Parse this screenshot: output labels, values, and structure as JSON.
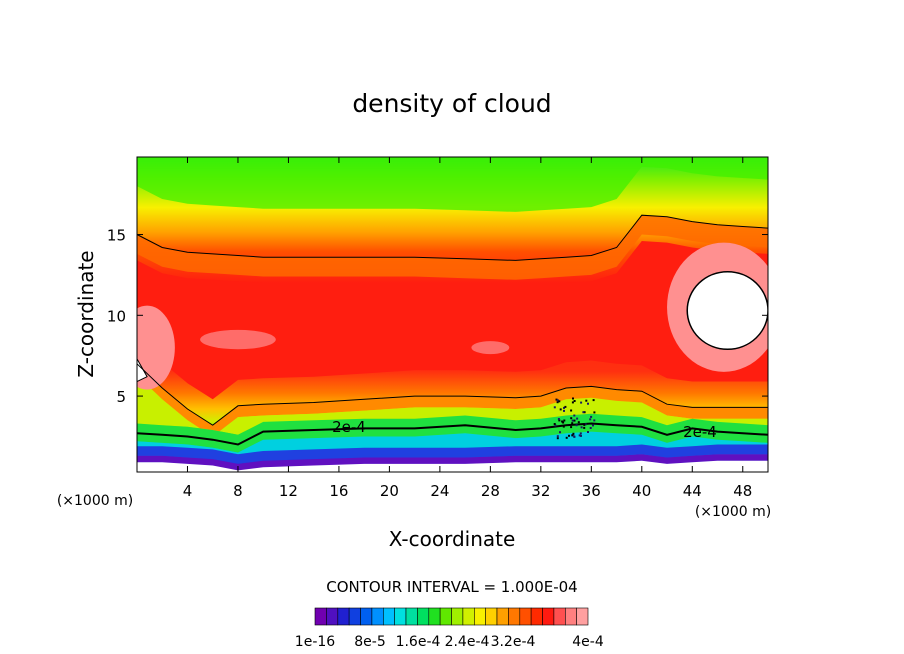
{
  "chart_data": {
    "type": "heatmap",
    "title": "density of cloud",
    "xlabel": "X-coordinate",
    "ylabel": "Z-coordinate",
    "x_unit": "(×1000 m)",
    "xlim": [
      0,
      50
    ],
    "ylim": [
      0.3,
      19.8
    ],
    "x_ticks": [
      4,
      8,
      12,
      16,
      20,
      24,
      28,
      32,
      36,
      40,
      44,
      48
    ],
    "y_ticks": [
      5,
      10,
      15
    ],
    "contour_interval_text": "CONTOUR INTERVAL = 1.000E-04",
    "contour_label": "2e-4",
    "colorbar_labels": [
      "1e-16",
      "8e-5",
      "1.6e-4",
      "2.4e-4",
      "3.2e-4",
      "4e-4"
    ],
    "colorbar_colors": [
      "#7000b0",
      "#5010c0",
      "#2020d0",
      "#1040e0",
      "#0060f0",
      "#0090ff",
      "#00c0ff",
      "#00e0e0",
      "#00e0a0",
      "#00e060",
      "#20e020",
      "#60e800",
      "#a0f000",
      "#d0f000",
      "#f8f000",
      "#ffd000",
      "#ffa000",
      "#ff7800",
      "#ff5000",
      "#ff2a00",
      "#ff1a10",
      "#ff5050",
      "#ff8080",
      "#ffa0a0"
    ],
    "levels_x": [
      0,
      2,
      4,
      6,
      8,
      10,
      14,
      18,
      22,
      26,
      30,
      32,
      34,
      36,
      38,
      40,
      42,
      44,
      46,
      48,
      50
    ],
    "contour_high_z": [
      15.0,
      14.2,
      13.9,
      13.8,
      13.7,
      13.6,
      13.6,
      13.6,
      13.6,
      13.5,
      13.4,
      13.5,
      13.6,
      13.7,
      14.2,
      16.2,
      16.1,
      15.8,
      15.6,
      15.5,
      15.4
    ],
    "contour_mid_z": [
      7.0,
      5.5,
      4.2,
      3.2,
      4.4,
      4.5,
      4.6,
      4.8,
      5.0,
      5.0,
      4.9,
      5.0,
      5.5,
      5.6,
      5.4,
      5.3,
      4.5,
      4.3,
      4.3,
      4.3,
      4.3
    ],
    "contour_2e4_z": [
      2.7,
      2.6,
      2.5,
      2.3,
      2.0,
      2.8,
      2.9,
      3.0,
      3.0,
      3.2,
      2.9,
      3.0,
      3.2,
      3.3,
      3.2,
      3.1,
      2.6,
      3.0,
      2.8,
      2.7,
      2.6
    ],
    "cloud_base_z": [
      1.0,
      1.0,
      0.9,
      0.8,
      0.5,
      0.7,
      0.8,
      0.9,
      0.9,
      0.9,
      1.0,
      1.0,
      1.0,
      1.0,
      1.0,
      1.1,
      0.9,
      1.0,
      1.1,
      1.1,
      1.1
    ],
    "max_region_label_z": [
      10.0
    ],
    "grid": false
  }
}
